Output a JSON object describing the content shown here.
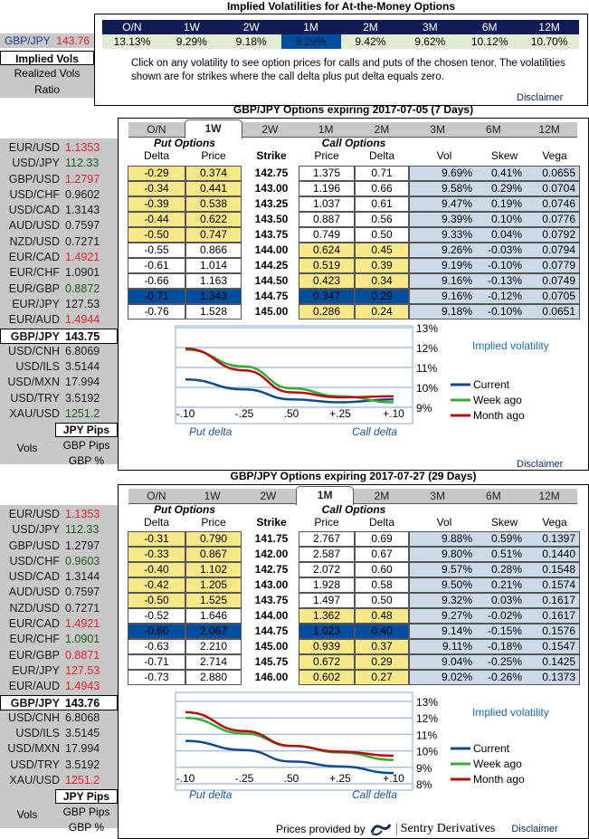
{
  "top": {
    "title": "Implied Volatilities for At-the-Money Options",
    "pair": "GBP/JPY",
    "rate": "143.76",
    "tenors": [
      "O/N",
      "1W",
      "2W",
      "1M",
      "2M",
      "3M",
      "6M",
      "12M"
    ],
    "vols": [
      "13.13%",
      "9.29%",
      "9.18%",
      "9.29%",
      "9.42%",
      "9.62%",
      "10.12%",
      "10.70%"
    ],
    "selected_vol": "1M",
    "note": "Click on any volatility to see option prices for calls and puts of the chosen tenor. The volatilities shown are for strikes where the call delta plus put delta equals zero.",
    "disclaimer": "Disclaimer"
  },
  "nav": {
    "implied": "Implied Vols",
    "realized": "Realized Vols",
    "ratio": "Ratio"
  },
  "colors": {
    "up": "#e8202a",
    "down": "#1e5a1e",
    "navy": "#101a55",
    "selected": "#004f9e",
    "itm": "#f7e98a",
    "vol_bg": "#ccdae8",
    "current": "#0f4a8c",
    "week": "#3aaa35",
    "month": "#b01010"
  },
  "sections": [
    {
      "title": "GBP/JPY Options expiring 2017-07-05 (7 Days)",
      "selected_tab": "1W",
      "headers": {
        "put": "Put Options",
        "call": "Call Options",
        "delta": "Delta",
        "price": "Price",
        "strike": "Strike",
        "cprice": "Price",
        "cdelta": "Delta",
        "vol": "Vol",
        "skew": "Skew",
        "vega": "Vega"
      },
      "rows": [
        {
          "pd": "-0.29",
          "pp": "0.374",
          "k": "142.75",
          "cp": "1.375",
          "cd": "0.71",
          "vol": "9.69%",
          "skew": "0.41%",
          "vega": "0.0655",
          "state": "put"
        },
        {
          "pd": "-0.34",
          "pp": "0.441",
          "k": "143.00",
          "cp": "1.196",
          "cd": "0.66",
          "vol": "9.58%",
          "skew": "0.29%",
          "vega": "0.0704",
          "state": "put"
        },
        {
          "pd": "-0.39",
          "pp": "0.538",
          "k": "143.25",
          "cp": "1.037",
          "cd": "0.61",
          "vol": "9.47%",
          "skew": "0.19%",
          "vega": "0.0746",
          "state": "put"
        },
        {
          "pd": "-0.44",
          "pp": "0.622",
          "k": "143.50",
          "cp": "0.887",
          "cd": "0.56",
          "vol": "9.39%",
          "skew": "0.10%",
          "vega": "0.0776",
          "state": "put"
        },
        {
          "pd": "-0.50",
          "pp": "0.747",
          "k": "143.75",
          "cp": "0.749",
          "cd": "0.50",
          "vol": "9.33%",
          "skew": "0.04%",
          "vega": "0.0792",
          "state": "put"
        },
        {
          "pd": "-0.55",
          "pp": "0.866",
          "k": "144.00",
          "cp": "0.624",
          "cd": "0.45",
          "vol": "9.26%",
          "skew": "-0.03%",
          "vega": "0.0794",
          "state": "call"
        },
        {
          "pd": "-0.61",
          "pp": "1.014",
          "k": "144.25",
          "cp": "0.519",
          "cd": "0.39",
          "vol": "9.19%",
          "skew": "-0.10%",
          "vega": "0.0779",
          "state": "call"
        },
        {
          "pd": "-0.66",
          "pp": "1.163",
          "k": "144.50",
          "cp": "0.423",
          "cd": "0.34",
          "vol": "9.16%",
          "skew": "-0.13%",
          "vega": "0.0749",
          "state": "call"
        },
        {
          "pd": "-0.71",
          "pp": "1.343",
          "k": "144.75",
          "cp": "0.347",
          "cd": "0.29",
          "vol": "9.16%",
          "skew": "-0.12%",
          "vega": "0.0705",
          "state": "selected"
        },
        {
          "pd": "-0.76",
          "pp": "1.528",
          "k": "145.00",
          "cp": "0.286",
          "cd": "0.24",
          "vol": "9.18%",
          "skew": "-0.10%",
          "vega": "0.0651",
          "state": "call"
        }
      ],
      "sidebar": [
        {
          "n": "EUR/USD",
          "p": "1.1353",
          "c": "up"
        },
        {
          "n": "USD/JPY",
          "p": "112.33",
          "c": "down"
        },
        {
          "n": "GBP/USD",
          "p": "1.2797",
          "c": "up"
        },
        {
          "n": "USD/CHF",
          "p": "0.9602",
          "c": ""
        },
        {
          "n": "USD/CAD",
          "p": "1.3143",
          "c": ""
        },
        {
          "n": "AUD/USD",
          "p": "0.7597",
          "c": ""
        },
        {
          "n": "NZD/USD",
          "p": "0.7271",
          "c": ""
        },
        {
          "n": "EUR/CAD",
          "p": "1.4921",
          "c": "up"
        },
        {
          "n": "EUR/CHF",
          "p": "1.0901",
          "c": ""
        },
        {
          "n": "EUR/GBP",
          "p": "0.8872",
          "c": "down"
        },
        {
          "n": "EUR/JPY",
          "p": "127.53",
          "c": ""
        },
        {
          "n": "EUR/AUD",
          "p": "1.4944",
          "c": "up"
        },
        {
          "n": "GBP/JPY",
          "p": "143.75",
          "c": "",
          "sel": true
        },
        {
          "n": "USD/CNH",
          "p": "6.8069",
          "c": ""
        },
        {
          "n": "USD/ILS",
          "p": "3.5144",
          "c": ""
        },
        {
          "n": "USD/MXN",
          "p": "17.994",
          "c": ""
        },
        {
          "n": "USD/TRY",
          "p": "3.5192",
          "c": ""
        },
        {
          "n": "XAU/USD",
          "p": "1251.2",
          "c": "down"
        }
      ],
      "units": {
        "vols": "Vols",
        "jpy": "JPY Pips",
        "gbp": "GBP Pips",
        "pct": "GBP %"
      },
      "disclaimer": "Disclaimer"
    },
    {
      "title": "GBP/JPY Options expiring 2017-07-27 (29 Days)",
      "selected_tab": "1M",
      "headers": {
        "put": "Put Options",
        "call": "Call Options",
        "delta": "Delta",
        "price": "Price",
        "strike": "Strike",
        "cprice": "Price",
        "cdelta": "Delta",
        "vol": "Vol",
        "skew": "Skew",
        "vega": "Vega"
      },
      "rows": [
        {
          "pd": "-0.31",
          "pp": "0.790",
          "k": "141.75",
          "cp": "2.767",
          "cd": "0.69",
          "vol": "9.88%",
          "skew": "0.59%",
          "vega": "0.1397",
          "state": "put"
        },
        {
          "pd": "-0.33",
          "pp": "0.867",
          "k": "142.00",
          "cp": "2.587",
          "cd": "0.67",
          "vol": "9.80%",
          "skew": "0.51%",
          "vega": "0.1440",
          "state": "put"
        },
        {
          "pd": "-0.40",
          "pp": "1.102",
          "k": "142.75",
          "cp": "2.072",
          "cd": "0.60",
          "vol": "9.57%",
          "skew": "0.28%",
          "vega": "0.1548",
          "state": "put"
        },
        {
          "pd": "-0.42",
          "pp": "1.205",
          "k": "143.00",
          "cp": "1.928",
          "cd": "0.58",
          "vol": "9.50%",
          "skew": "0.21%",
          "vega": "0.1574",
          "state": "put"
        },
        {
          "pd": "-0.50",
          "pp": "1.525",
          "k": "143.75",
          "cp": "1.497",
          "cd": "0.50",
          "vol": "9.32%",
          "skew": "0.03%",
          "vega": "0.1617",
          "state": "put"
        },
        {
          "pd": "-0.52",
          "pp": "1.646",
          "k": "144.00",
          "cp": "1.362",
          "cd": "0.48",
          "vol": "9.27%",
          "skew": "-0.02%",
          "vega": "0.1617",
          "state": "call"
        },
        {
          "pd": "-0.60",
          "pp": "2.067",
          "k": "144.75",
          "cp": "1.023",
          "cd": "0.40",
          "vol": "9.14%",
          "skew": "-0.15%",
          "vega": "0.1576",
          "state": "selected"
        },
        {
          "pd": "-0.63",
          "pp": "2.210",
          "k": "145.00",
          "cp": "0.939",
          "cd": "0.37",
          "vol": "9.11%",
          "skew": "-0.18%",
          "vega": "0.1547",
          "state": "call"
        },
        {
          "pd": "-0.71",
          "pp": "2.714",
          "k": "145.75",
          "cp": "0.672",
          "cd": "0.29",
          "vol": "9.04%",
          "skew": "-0.25%",
          "vega": "0.1425",
          "state": "call"
        },
        {
          "pd": "-0.73",
          "pp": "2.880",
          "k": "146.00",
          "cp": "0.602",
          "cd": "0.27",
          "vol": "9.02%",
          "skew": "-0.26%",
          "vega": "0.1373",
          "state": "call"
        }
      ],
      "sidebar": [
        {
          "n": "EUR/USD",
          "p": "1.1353",
          "c": "up"
        },
        {
          "n": "USD/JPY",
          "p": "112.33",
          "c": "down"
        },
        {
          "n": "GBP/USD",
          "p": "1.2797",
          "c": ""
        },
        {
          "n": "USD/CHF",
          "p": "0.9603",
          "c": "down"
        },
        {
          "n": "USD/CAD",
          "p": "1.3144",
          "c": ""
        },
        {
          "n": "AUD/USD",
          "p": "0.7597",
          "c": ""
        },
        {
          "n": "NZD/USD",
          "p": "0.7271",
          "c": ""
        },
        {
          "n": "EUR/CAD",
          "p": "1.4921",
          "c": "up"
        },
        {
          "n": "EUR/CHF",
          "p": "1.0901",
          "c": "down"
        },
        {
          "n": "EUR/GBP",
          "p": "0.8871",
          "c": "up"
        },
        {
          "n": "EUR/JPY",
          "p": "127.53",
          "c": "up"
        },
        {
          "n": "EUR/AUD",
          "p": "1.4943",
          "c": "up"
        },
        {
          "n": "GBP/JPY",
          "p": "143.76",
          "c": "",
          "sel": true
        },
        {
          "n": "USD/CNH",
          "p": "6.8068",
          "c": ""
        },
        {
          "n": "USD/ILS",
          "p": "3.5145",
          "c": ""
        },
        {
          "n": "USD/MXN",
          "p": "17.994",
          "c": ""
        },
        {
          "n": "USD/TRY",
          "p": "3.5192",
          "c": ""
        },
        {
          "n": "XAU/USD",
          "p": "1251.2",
          "c": "up"
        }
      ],
      "units": {
        "vols": "Vols",
        "jpy": "JPY Pips",
        "gbp": "GBP Pips",
        "pct": "GBP %"
      }
    }
  ],
  "chart_data": [
    {
      "type": "line",
      "title": "Implied volatility",
      "xlabel_left": "Put delta",
      "xlabel_right": "Call delta",
      "categories": [
        "-.10",
        "-.25",
        ".50",
        "+.25",
        "+.10"
      ],
      "yticks": [
        "13%",
        "12%",
        "11%",
        "10%",
        "9%"
      ],
      "ylim": [
        9,
        13
      ],
      "grid": true,
      "legend": "right",
      "series": [
        {
          "name": "Current",
          "values": [
            10.4,
            9.9,
            9.4,
            9.25,
            9.4
          ]
        },
        {
          "name": "Week ago",
          "values": [
            11.9,
            11.05,
            9.95,
            9.55,
            9.25
          ]
        },
        {
          "name": "Month ago",
          "values": [
            11.95,
            10.85,
            9.75,
            9.5,
            9.55
          ]
        }
      ]
    },
    {
      "type": "line",
      "title": "Implied volatility",
      "xlabel_left": "Put delta",
      "xlabel_right": "Call delta",
      "categories": [
        "-.10",
        "-.25",
        ".50",
        "+.25",
        "+.10"
      ],
      "yticks": [
        "13%",
        "12%",
        "11%",
        "10%",
        "9%",
        "8%"
      ],
      "ylim": [
        8,
        13
      ],
      "grid": true,
      "legend": "right",
      "series": [
        {
          "name": "Current",
          "values": [
            10.6,
            10.05,
            9.35,
            9.05,
            8.65
          ]
        },
        {
          "name": "Week ago",
          "values": [
            12.0,
            11.05,
            10.3,
            9.9,
            9.45
          ]
        },
        {
          "name": "Month ago",
          "values": [
            12.35,
            11.2,
            10.3,
            9.95,
            9.7
          ]
        }
      ]
    }
  ],
  "footer": {
    "provided": "Prices provided by",
    "brand": "Sentry Derivatives",
    "disclaimer": "Disclaimer"
  }
}
